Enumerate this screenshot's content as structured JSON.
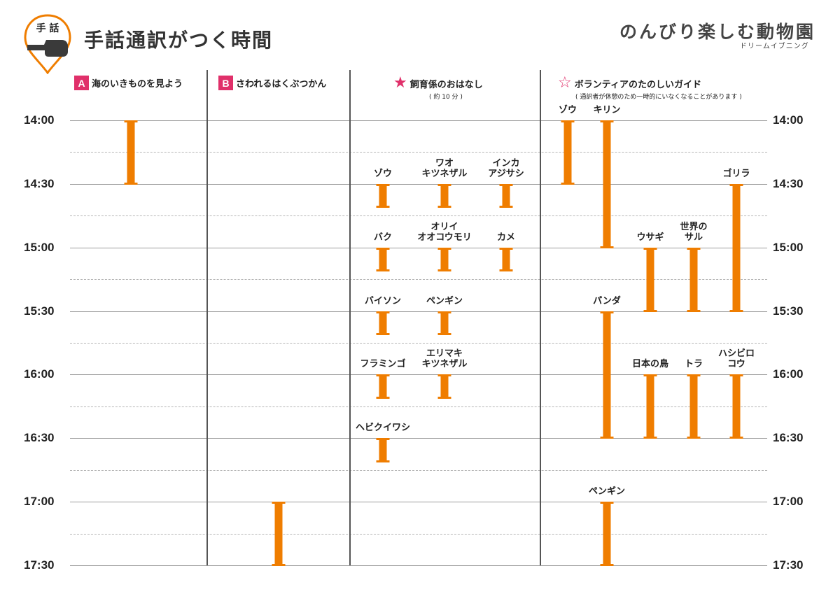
{
  "header": {
    "icon_label": "手 話",
    "title": "手話通訳がつく時間",
    "brand": "のんびり楽しむ動物園",
    "event_name": "ドリームイブニング"
  },
  "columns": [
    {
      "badge": "A",
      "label": "海のいきものを見よう"
    },
    {
      "badge": "B",
      "label": "さわれるはくぶつかん"
    },
    {
      "badge": "★",
      "label": "飼育係のおはなし",
      "note": "( 約 10 分 )"
    },
    {
      "badge": "☆",
      "label": "ボランティアのたのしいガイド",
      "note": "( 通訳者が休憩のため一時的にいなくなることがあります )"
    }
  ],
  "times": [
    "14:00",
    "14:30",
    "15:00",
    "15:30",
    "16:00",
    "16:30",
    "17:00",
    "17:30"
  ],
  "events": [
    {
      "col": "A",
      "name": "",
      "start": "14:00",
      "end": "14:30"
    },
    {
      "col": "B",
      "name": "",
      "start": "17:00",
      "end": "17:30"
    },
    {
      "col": "keeper",
      "name": "ゾウ",
      "start": "14:30",
      "end": "14:41"
    },
    {
      "col": "keeper",
      "name": "ワオ\nキツネザル",
      "start": "14:30",
      "end": "14:41"
    },
    {
      "col": "keeper",
      "name": "インカ\nアジサシ",
      "start": "14:30",
      "end": "14:41"
    },
    {
      "col": "keeper",
      "name": "バク",
      "start": "15:00",
      "end": "15:11"
    },
    {
      "col": "keeper",
      "name": "オリイ\nオオコウモリ",
      "start": "15:00",
      "end": "15:11"
    },
    {
      "col": "keeper",
      "name": "カメ",
      "start": "15:00",
      "end": "15:11"
    },
    {
      "col": "keeper",
      "name": "バイソン",
      "start": "15:30",
      "end": "15:41"
    },
    {
      "col": "keeper",
      "name": "ペンギン",
      "start": "15:30",
      "end": "15:41"
    },
    {
      "col": "keeper",
      "name": "フラミンゴ",
      "start": "16:00",
      "end": "16:11"
    },
    {
      "col": "keeper",
      "name": "エリマキ\nキツネザル",
      "start": "16:00",
      "end": "16:11"
    },
    {
      "col": "keeper",
      "name": "ヘビクイワシ",
      "start": "16:30",
      "end": "16:41"
    },
    {
      "col": "guide",
      "name": "ゾウ",
      "start": "14:00",
      "end": "14:30"
    },
    {
      "col": "guide",
      "name": "キリン",
      "start": "14:00",
      "end": "15:00"
    },
    {
      "col": "guide",
      "name": "ゴリラ",
      "start": "14:30",
      "end": "15:30"
    },
    {
      "col": "guide",
      "name": "ウサギ",
      "start": "15:00",
      "end": "15:30"
    },
    {
      "col": "guide",
      "name": "世界の\nサル",
      "start": "15:00",
      "end": "15:30"
    },
    {
      "col": "guide",
      "name": "パンダ",
      "start": "15:30",
      "end": "16:30"
    },
    {
      "col": "guide",
      "name": "日本の鳥",
      "start": "16:00",
      "end": "16:30"
    },
    {
      "col": "guide",
      "name": "トラ",
      "start": "16:00",
      "end": "16:30"
    },
    {
      "col": "guide",
      "name": "ハシビロ\nコウ",
      "start": "16:00",
      "end": "16:30"
    },
    {
      "col": "guide",
      "name": "ペンギン",
      "start": "17:00",
      "end": "17:30"
    }
  ],
  "colors": {
    "accent": "#e0306a",
    "bar": "#ef7d00",
    "logo": "#ef7d00"
  }
}
